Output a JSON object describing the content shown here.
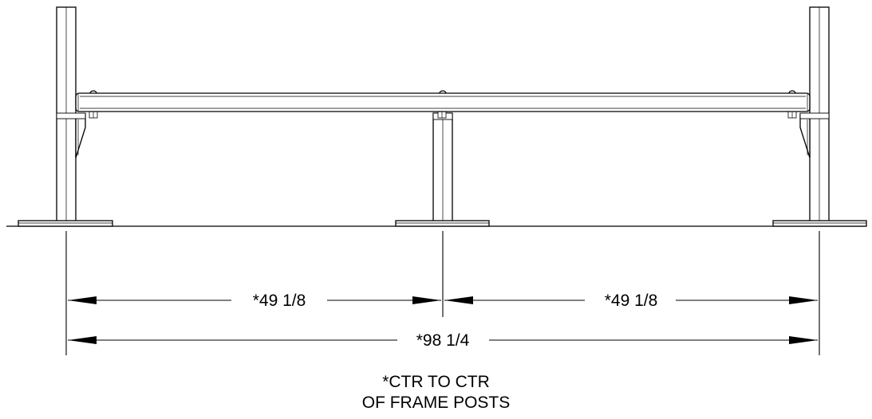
{
  "dimensions": {
    "left_span": "*49 1/8",
    "right_span": "*49 1/8",
    "overall": "*98 1/4"
  },
  "note": {
    "line1": "*CTR TO CTR",
    "line2": "OF FRAME POSTS"
  }
}
